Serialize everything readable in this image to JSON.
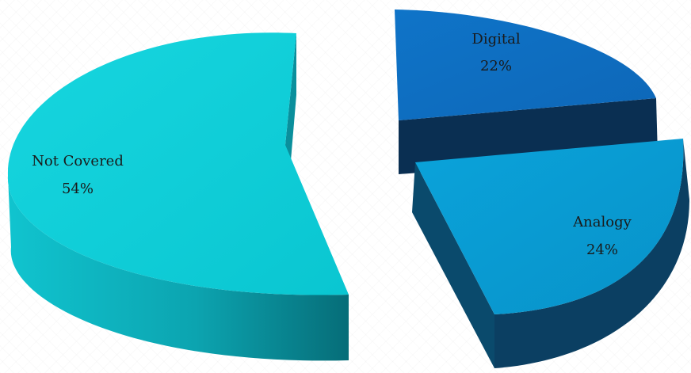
{
  "chart_data": {
    "type": "pie",
    "style": "3d-exploded",
    "title": "",
    "slices": [
      {
        "name": "Not Covered",
        "value": 54,
        "label": "54%",
        "color": "#0dcdd8"
      },
      {
        "name": "Digital",
        "value": 22,
        "label": "22%",
        "color": "#0e6fc4"
      },
      {
        "name": "Analogy",
        "value": 24,
        "label": "24%",
        "color": "#0a9dd6"
      }
    ],
    "legend": "none"
  }
}
